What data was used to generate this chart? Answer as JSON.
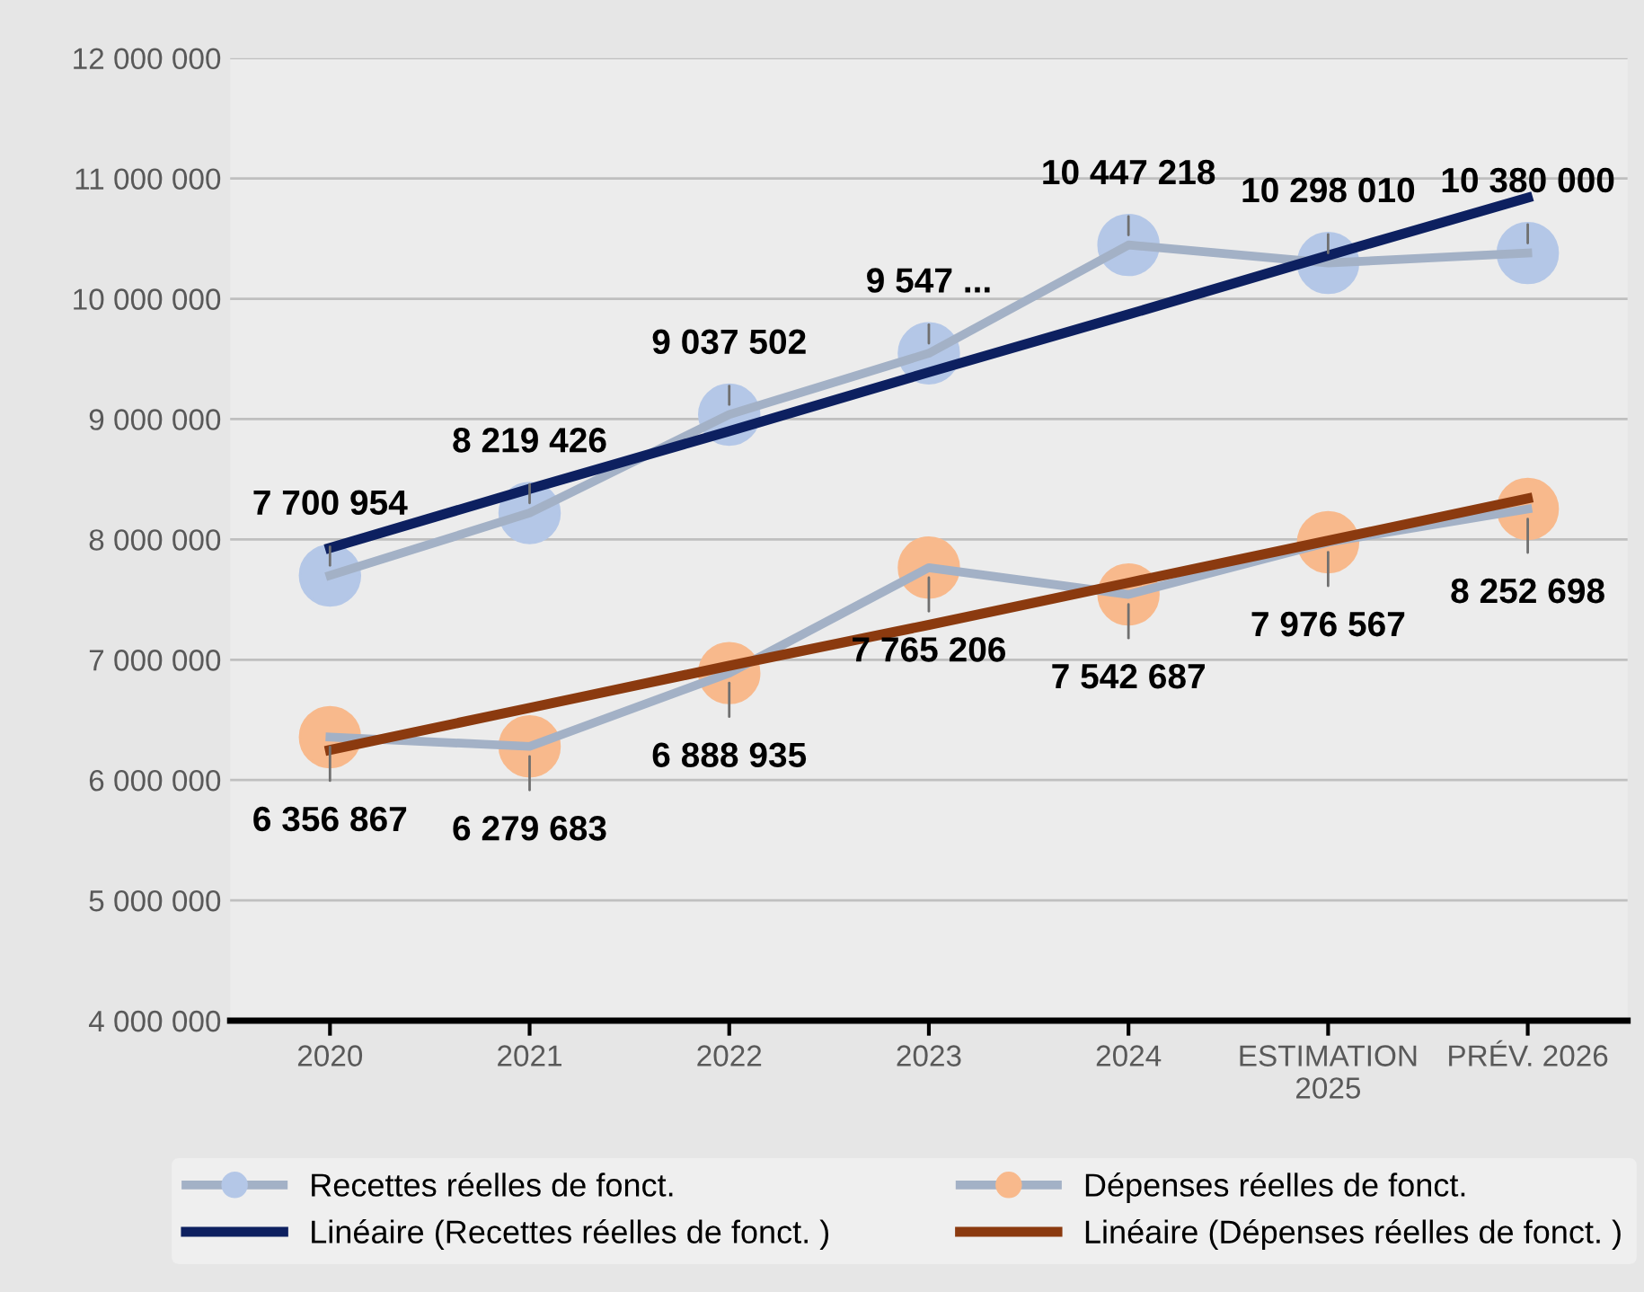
{
  "chart_data": {
    "type": "line",
    "categories": [
      "2020",
      "2021",
      "2022",
      "2023",
      "2024",
      "ESTIMATION\n2025",
      "PRÉV. 2026"
    ],
    "series": [
      {
        "name": "Recettes réelles de fonct.",
        "color": "#b4c7e7",
        "values": [
          7700954,
          8219426,
          9037502,
          9547000,
          10447218,
          10298010,
          10380000
        ],
        "value_labels": [
          "7 700 954",
          "8 219 426",
          "9 037 502",
          "9 547 ...",
          "10 447 218",
          "10 298 010",
          "10 380 000"
        ],
        "marker": "circle"
      },
      {
        "name": "Dépenses réelles de fonct.",
        "color": "#f8b98c",
        "values": [
          6356867,
          6279683,
          6888935,
          7765206,
          7542687,
          7976567,
          8252698
        ],
        "value_labels": [
          "6 356 867",
          "6 279 683",
          "6 888 935",
          "7 765 206",
          "7 542 687",
          "7 976 567",
          "8 252 698"
        ],
        "marker": "circle"
      },
      {
        "name": "Linéaire (Recettes réelles de fonct. )",
        "color": "#0d2060",
        "values": [
          7930000,
          8420000,
          8900000,
          9390000,
          9870000,
          10360000,
          10840000
        ],
        "marker": "none"
      },
      {
        "name": "Linéaire (Dépenses réelles de fonct. )",
        "color": "#8b3a0f",
        "values": [
          6250000,
          6600000,
          6950000,
          7290000,
          7640000,
          7990000,
          8340000
        ],
        "marker": "none"
      }
    ],
    "ylim": [
      4000000,
      12000000
    ],
    "yticks": [
      {
        "value": 4000000,
        "label": "4 000 000"
      },
      {
        "value": 5000000,
        "label": "5 000 000"
      },
      {
        "value": 6000000,
        "label": "6 000 000"
      },
      {
        "value": 7000000,
        "label": "7 000 000"
      },
      {
        "value": 8000000,
        "label": "8 000 000"
      },
      {
        "value": 9000000,
        "label": "9 000 000"
      },
      {
        "value": 10000000,
        "label": "10 000 000"
      },
      {
        "value": 11000000,
        "label": "11 000 000"
      },
      {
        "value": 12000000,
        "label": "12 000 000"
      }
    ],
    "grid": "y",
    "legend": "bottom"
  }
}
